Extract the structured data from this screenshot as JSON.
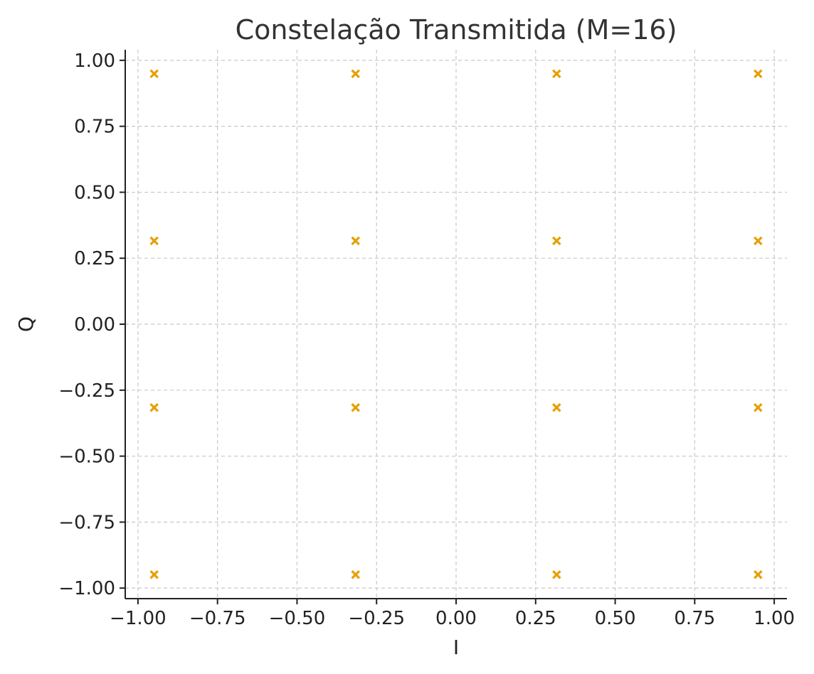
{
  "chart_data": {
    "type": "scatter",
    "title": "Constelação Transmitida (M=16)",
    "xlabel": "I",
    "ylabel": "Q",
    "xlim": [
      -1.04,
      1.04
    ],
    "ylim": [
      -1.04,
      1.04
    ],
    "xticks": [
      -1.0,
      -0.75,
      -0.5,
      -0.25,
      0.0,
      0.25,
      0.5,
      0.75,
      1.0
    ],
    "yticks": [
      -1.0,
      -0.75,
      -0.5,
      -0.25,
      0.0,
      0.25,
      0.5,
      0.75,
      1.0
    ],
    "xtick_labels": [
      "−1.00",
      "−0.75",
      "−0.50",
      "−0.25",
      "0.00",
      "0.25",
      "0.50",
      "0.75",
      "1.00"
    ],
    "ytick_labels": [
      "−1.00",
      "−0.75",
      "−0.50",
      "−0.25",
      "0.00",
      "0.25",
      "0.50",
      "0.75",
      "1.00"
    ],
    "grid": true,
    "marker": "x",
    "color": "#E69F00",
    "series": [
      {
        "x": [
          -0.949,
          -0.316,
          0.316,
          0.949,
          -0.949,
          -0.316,
          0.316,
          0.949,
          -0.949,
          -0.316,
          0.316,
          0.949,
          -0.949,
          -0.316,
          0.316,
          0.949
        ],
        "y": [
          0.949,
          0.949,
          0.949,
          0.949,
          0.316,
          0.316,
          0.316,
          0.316,
          -0.316,
          -0.316,
          -0.316,
          -0.316,
          -0.949,
          -0.949,
          -0.949,
          -0.949
        ]
      }
    ]
  }
}
